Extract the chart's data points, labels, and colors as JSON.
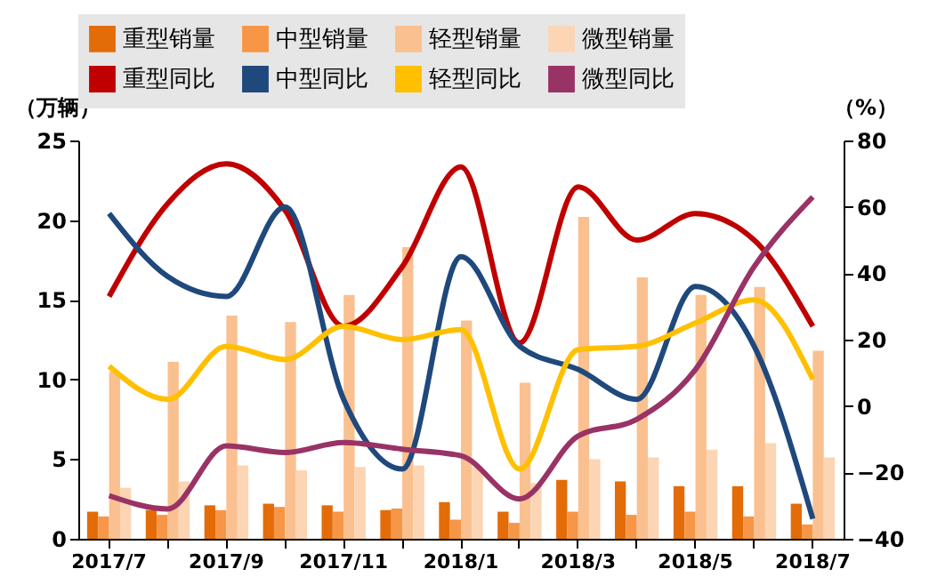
{
  "chart_data": {
    "type": "bar",
    "ylabel": "（万辆）",
    "y2label": "（%）",
    "categories": [
      "2017/7",
      null,
      "2017/9",
      null,
      "2017/11",
      null,
      "2018/1",
      null,
      "2018/3",
      null,
      "2018/5",
      null,
      "2018/7"
    ],
    "ylim": [
      0,
      25
    ],
    "yticks": [
      0,
      5,
      10,
      15,
      20,
      25
    ],
    "y2lim": [
      -40,
      80
    ],
    "y2ticks": [
      -40,
      -20,
      0,
      20,
      40,
      60,
      80
    ],
    "legend": "top",
    "grid": false,
    "series": [
      {
        "name": "重型销量",
        "color": "#e36c09",
        "values": [
          1.7,
          1.8,
          2.1,
          2.2,
          2.1,
          1.8,
          2.3,
          1.7,
          3.7,
          3.6,
          3.3,
          3.3,
          2.2
        ]
      },
      {
        "name": "中型销量",
        "color": "#f79646",
        "values": [
          1.4,
          1.5,
          1.8,
          2.0,
          1.7,
          1.9,
          1.2,
          1.0,
          1.7,
          1.5,
          1.7,
          1.4,
          0.9
        ]
      },
      {
        "name": "轻型销量",
        "color": "#fac090",
        "values": [
          10.5,
          11.1,
          14.0,
          13.6,
          15.3,
          18.3,
          13.7,
          9.8,
          20.2,
          16.4,
          15.3,
          15.8,
          11.8
        ]
      },
      {
        "name": "微型销量",
        "color": "#fcd5b4",
        "values": [
          3.2,
          3.6,
          4.6,
          4.3,
          4.5,
          4.6,
          4.5,
          3.5,
          5.0,
          5.1,
          5.6,
          6.0,
          5.1
        ]
      },
      {
        "name": "重型同比",
        "type": "line",
        "axis": "y2",
        "color": "#c00000",
        "values": [
          33,
          61,
          73,
          59,
          24,
          42,
          72,
          19,
          66,
          50,
          58,
          50,
          24
        ]
      },
      {
        "name": "中型同比",
        "type": "line",
        "axis": "y2",
        "color": "#1f497d",
        "values": [
          58,
          39,
          33,
          60,
          2,
          -19,
          45,
          18,
          11,
          2,
          36,
          18,
          -34
        ]
      },
      {
        "name": "轻型同比",
        "type": "line",
        "axis": "y2",
        "color": "#ffc000",
        "values": [
          12,
          2,
          18,
          14,
          24,
          20,
          23,
          -19,
          17,
          18,
          25,
          32,
          8
        ]
      },
      {
        "name": "微型同比",
        "type": "line",
        "axis": "y2",
        "color": "#993366",
        "values": [
          -27,
          -31,
          -12,
          -14,
          -11,
          -13,
          -15,
          -28,
          -9,
          -4,
          11,
          42,
          63
        ]
      }
    ]
  }
}
